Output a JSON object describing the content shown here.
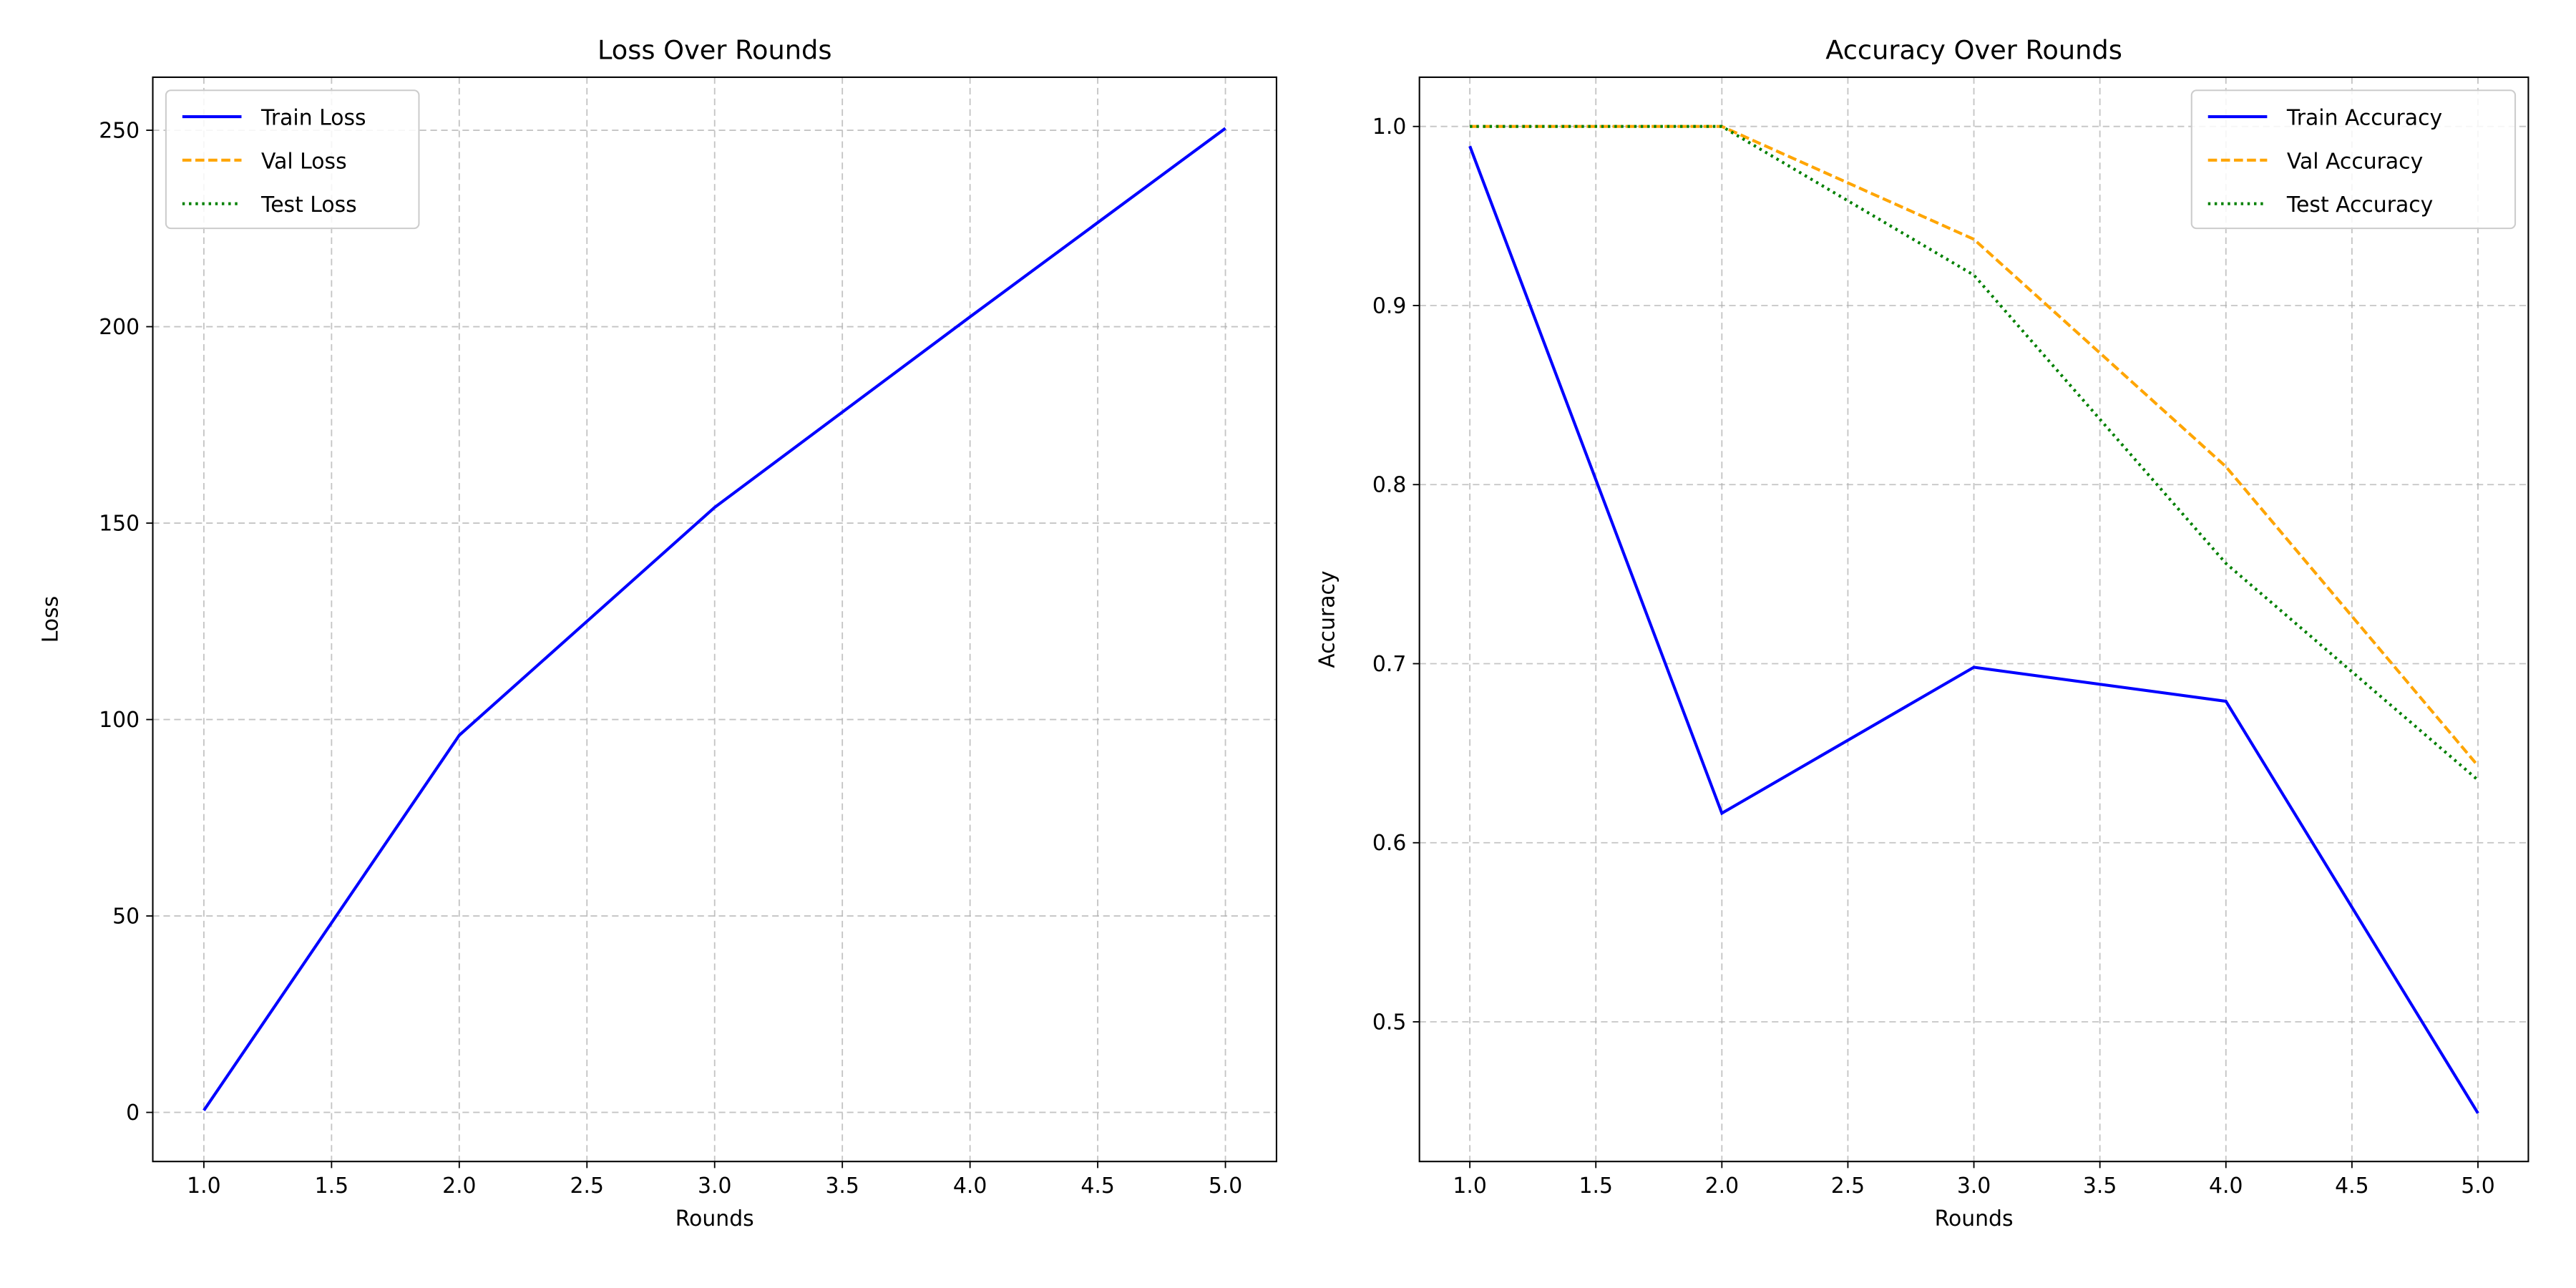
{
  "chart_data": [
    {
      "type": "line",
      "title": "Loss Over Rounds",
      "x_label": "Rounds",
      "y_label": "Loss",
      "x": [
        1,
        2,
        3,
        4,
        5
      ],
      "series": [
        {
          "name": "Train Loss",
          "color": "#0000ff",
          "linestyle": "solid",
          "values": [
            0.5,
            96,
            154,
            202.5,
            250.5
          ]
        },
        {
          "name": "Val Loss",
          "color": "#ffa500",
          "linestyle": "dashed",
          "values": [
            null,
            null,
            null,
            null,
            null
          ]
        },
        {
          "name": "Test Loss",
          "color": "#008000",
          "linestyle": "dotted",
          "values": [
            null,
            null,
            null,
            null,
            null
          ]
        }
      ],
      "xlim": [
        0.8,
        5.2
      ],
      "xticks": [
        {
          "value": 1,
          "label": "1.0"
        },
        1.5,
        {
          "value": 2,
          "label": "2.0"
        },
        2.5,
        {
          "value": 3,
          "label": "3.0"
        },
        3.5,
        {
          "value": 4,
          "label": "4.0"
        },
        4.5,
        {
          "value": 5,
          "label": "5.0"
        }
      ],
      "ylim": [
        -12.5,
        263.5
      ],
      "yticks": [
        0,
        50,
        100,
        150,
        200,
        250
      ],
      "grid": true,
      "legend": "upper left"
    },
    {
      "type": "line",
      "title": "Accuracy Over Rounds",
      "x_label": "Rounds",
      "y_label": "Accuracy",
      "x": [
        1,
        2,
        3,
        4,
        5
      ],
      "series": [
        {
          "name": "Train Accuracy",
          "color": "#0000ff",
          "linestyle": "solid",
          "values": [
            0.989,
            0.6165,
            0.698,
            0.679,
            0.449
          ]
        },
        {
          "name": "Val Accuracy",
          "color": "#ffa500",
          "linestyle": "dashed",
          "values": [
            1.0,
            1.0,
            0.937,
            0.81,
            0.643
          ]
        },
        {
          "name": "Test Accuracy",
          "color": "#008000",
          "linestyle": "dotted",
          "values": [
            1.0,
            1.0,
            0.917,
            0.756,
            0.635
          ]
        }
      ],
      "xlim": [
        0.8,
        5.2
      ],
      "xticks": [
        {
          "value": 1,
          "label": "1.0"
        },
        1.5,
        {
          "value": 2,
          "label": "2.0"
        },
        2.5,
        {
          "value": 3,
          "label": "3.0"
        },
        3.5,
        {
          "value": 4,
          "label": "4.0"
        },
        4.5,
        {
          "value": 5,
          "label": "5.0"
        }
      ],
      "ylim": [
        0.422,
        1.0275
      ],
      "yticks": [
        0.5,
        0.6,
        0.7,
        0.8,
        0.9,
        {
          "value": 1,
          "label": "1.0"
        }
      ],
      "grid": true,
      "legend": "upper right"
    }
  ]
}
